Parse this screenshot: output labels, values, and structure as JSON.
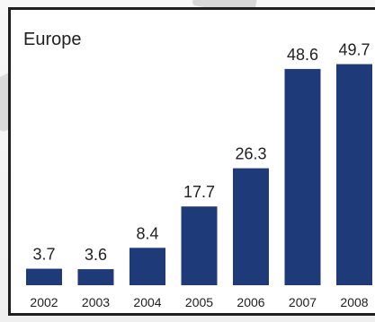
{
  "chart_data": {
    "type": "bar",
    "title": "Europe",
    "categories": [
      "2002",
      "2003",
      "2004",
      "2005",
      "2006",
      "2007",
      "2008"
    ],
    "values": [
      3.7,
      3.6,
      8.4,
      17.7,
      26.3,
      48.6,
      49.7
    ],
    "value_labels": [
      "3.7",
      "3.6",
      "8.4",
      "17.7",
      "26.3",
      "48.6",
      "49.7"
    ],
    "xlabel": "",
    "ylabel": "",
    "ylim": [
      0,
      50
    ],
    "grid": false,
    "bar_color": "#1f3a78"
  }
}
